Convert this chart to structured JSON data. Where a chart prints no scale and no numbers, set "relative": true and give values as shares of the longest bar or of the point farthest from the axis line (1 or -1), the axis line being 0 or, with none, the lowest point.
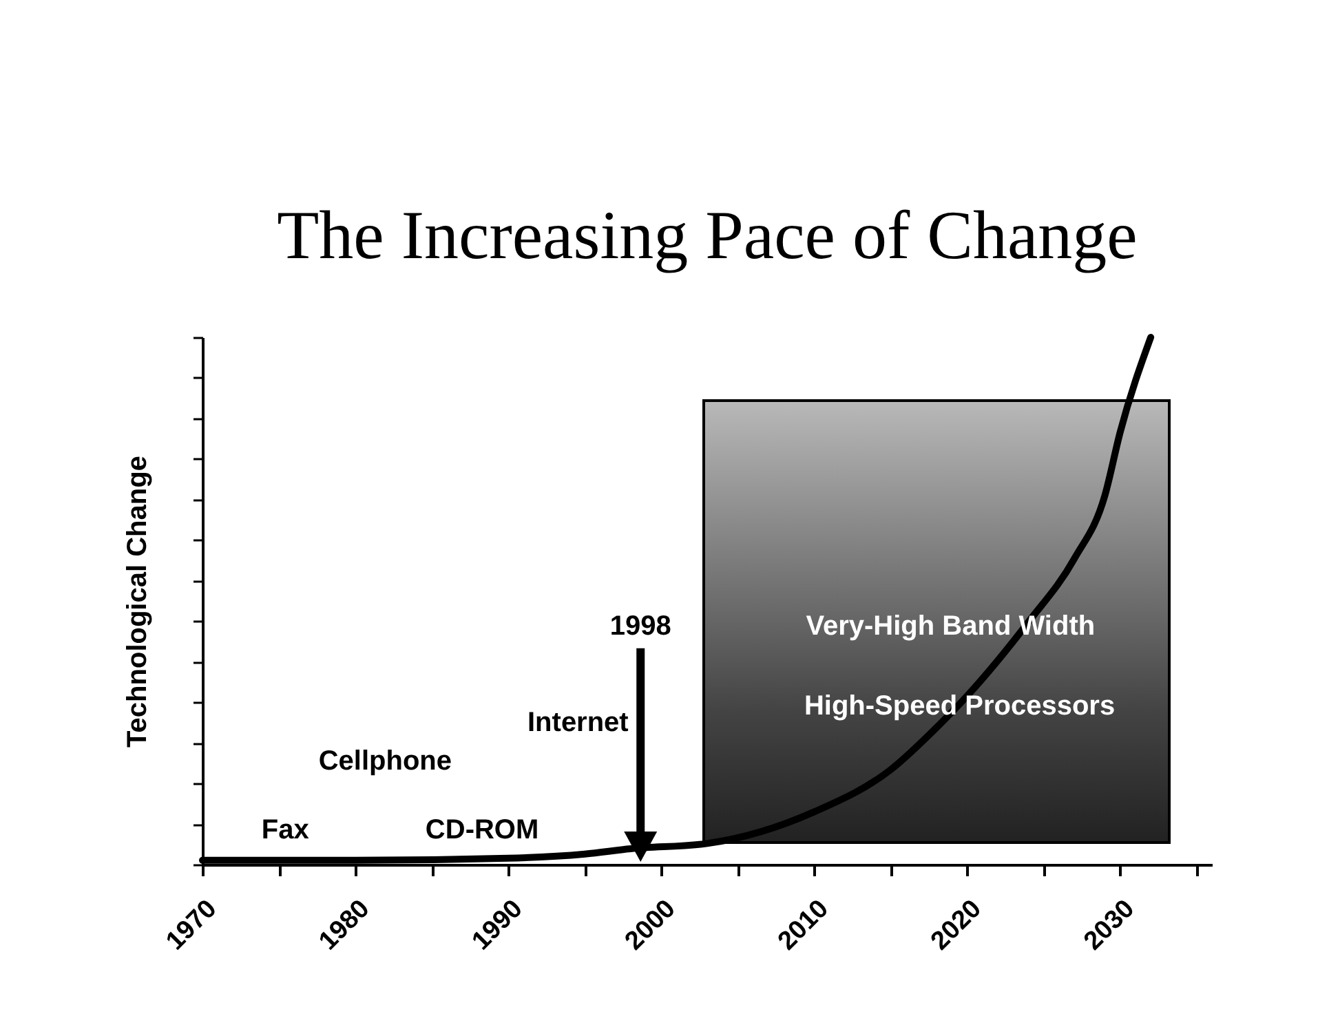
{
  "chart_data": {
    "type": "line",
    "title": "The Increasing Pace of Change",
    "ylabel": "Technological Change",
    "relative": true,
    "x": [
      1970,
      1980,
      1990,
      1995,
      1998,
      2003,
      2010,
      2015,
      2018,
      2020,
      2024,
      2027,
      2029,
      2030,
      2032
    ],
    "series": [
      {
        "color": "#000000",
        "values": [
          0.008,
          0.008,
          0.012,
          0.02,
          0.03,
          0.04,
          0.1,
          0.18,
          0.26,
          0.32,
          0.46,
          0.58,
          0.7,
          0.82,
          1
        ]
      }
    ],
    "xlim": [
      1970,
      2036
    ],
    "xticks": [
      1970,
      {
        "value": 1975,
        "label": null
      },
      1980,
      {
        "value": 1985,
        "label": null
      },
      1990,
      {
        "value": 1995,
        "label": null
      },
      2000,
      {
        "value": 2005,
        "label": null
      },
      2010,
      {
        "value": 2015,
        "label": null
      },
      2020,
      {
        "value": 2025,
        "label": null
      },
      2030,
      {
        "value": 2035,
        "label": null
      }
    ],
    "annotations": [
      "Fax",
      "CD-ROM",
      "Cellphone",
      "Internet",
      "1998",
      "Very-High Band Width",
      "High-Speed Processors"
    ],
    "tick_labels": "x",
    "grid": false,
    "marker": "none",
    "line_style": "solid"
  }
}
